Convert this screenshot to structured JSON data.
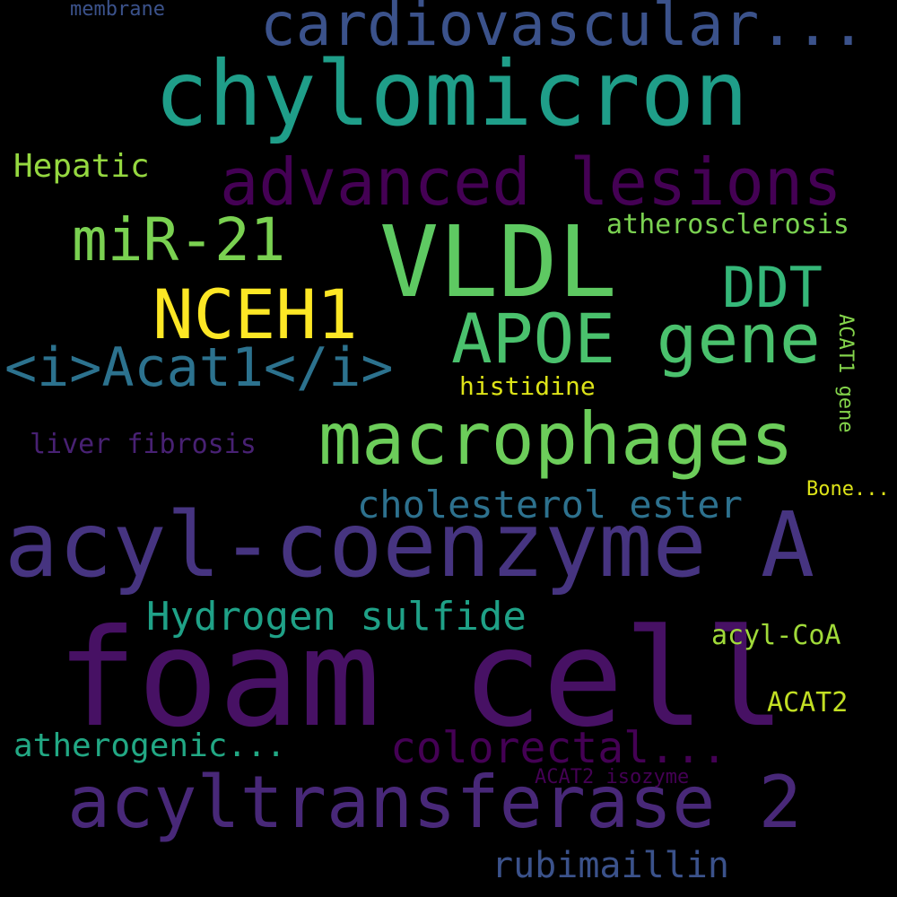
{
  "words": {
    "foam_cell": {
      "text": "foam cell",
      "color": "#471164"
    },
    "acyl_coenzyme_a": {
      "text": "acyl-coenzyme A",
      "color": "#463480"
    },
    "vldl": {
      "text": "VLDL",
      "color": "#5ec962"
    },
    "chylomicron": {
      "text": "chylomicron",
      "color": "#1f9e89"
    },
    "acyltransferase_2": {
      "text": "acyltransferase 2",
      "color": "#482878"
    },
    "macrophages": {
      "text": "macrophages",
      "color": "#6ccd5a"
    },
    "advanced_lesions": {
      "text": "advanced lesions",
      "color": "#440154"
    },
    "cardiovascular": {
      "text": "cardiovascular...",
      "color": "#3b528b"
    },
    "apoe_gene": {
      "text": "APOE gene",
      "color": "#4ac16d"
    },
    "nceh1": {
      "text": "NCEH1",
      "color": "#fde725"
    },
    "acat1_tagged": {
      "text": "<i>Acat1</i>",
      "color": "#2c728e"
    },
    "mir_21": {
      "text": "miR-21",
      "color": "#7ad151"
    },
    "ddt": {
      "text": "DDT",
      "color": "#35b779"
    },
    "hydrogen_sulfide": {
      "text": "Hydrogen sulfide",
      "color": "#1fa187"
    },
    "cholesterol_ester": {
      "text": "cholesterol ester",
      "color": "#2d718e"
    },
    "colorectal": {
      "text": "colorectal...",
      "color": "#440154"
    },
    "rubimaillin": {
      "text": "rubimaillin",
      "color": "#3b528b"
    },
    "atherogenic": {
      "text": "atherogenic...",
      "color": "#22a884"
    },
    "hepatic": {
      "text": "Hepatic",
      "color": "#95d840"
    },
    "atherosclerosis": {
      "text": "atherosclerosis",
      "color": "#7ad151"
    },
    "liver_fibrosis": {
      "text": "liver fibrosis",
      "color": "#482173"
    },
    "histidine": {
      "text": "histidine",
      "color": "#dde318"
    },
    "acyl_coa": {
      "text": "acyl-CoA",
      "color": "#a0da39"
    },
    "acat2": {
      "text": "ACAT2",
      "color": "#c2df23"
    },
    "bone": {
      "text": "Bone...",
      "color": "#dde318"
    },
    "acat1_gene": {
      "text": "ACAT1 gene",
      "color": "#84d44b"
    },
    "acat2_isozyme": {
      "text": "ACAT2 isozyme",
      "color": "#440154"
    },
    "membrane": {
      "text": "membrane",
      "color": "#3b528b"
    }
  },
  "background_color": "#000000"
}
